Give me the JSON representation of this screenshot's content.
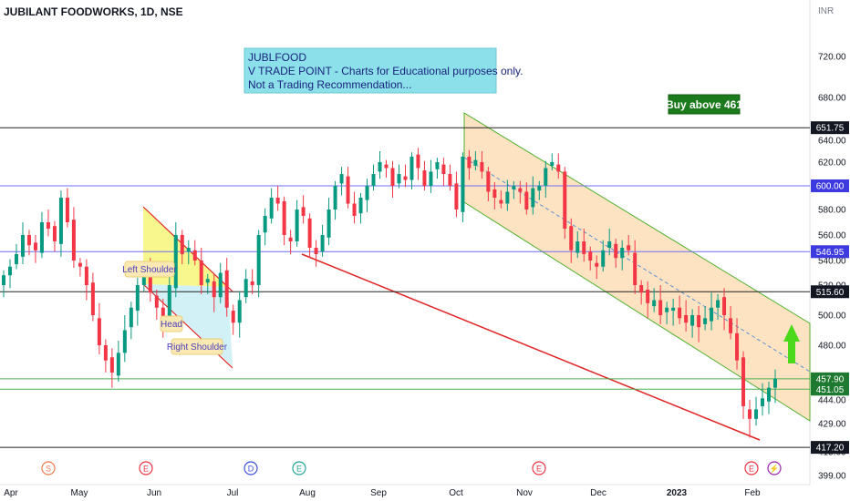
{
  "header": {
    "symbol_line": "JUBILANT FOODWORKS, 1D, NSE",
    "currency": "INR"
  },
  "info_box": {
    "line1": "JUBLFOOD",
    "line2": "V TRADE POINT - Charts for Educational purposes only.",
    "line3": "Not a Trading Recommendation..."
  },
  "callout": {
    "text": "Buy above 461",
    "bg": "#1b7a1b"
  },
  "colors": {
    "up": "#089981",
    "down": "#f23645",
    "channel_fill": "#fde3c2",
    "channel_edge": "#4caf2a",
    "blue_line": "#6f6cf0",
    "black_line": "#222222",
    "green_line": "#4caf50",
    "red_line": "#e02424",
    "pattern_yellow": "#f6f67a",
    "pattern_cyan": "#c9eef5",
    "arrow": "#4cd91c"
  },
  "chart_data": {
    "type": "candlestick",
    "title": "JUBILANT FOODWORKS, 1D, NSE",
    "ylabel": "INR",
    "ylim": [
      395,
      735
    ],
    "yticks": [
      399,
      415,
      429,
      444,
      459,
      480,
      500,
      520,
      540,
      560,
      580,
      600,
      620,
      640,
      680,
      720
    ],
    "ytick_labels": [
      "399.00",
      "415.00",
      "429.00",
      "444.00",
      "459.00",
      "480.00",
      "500.00",
      "520.00",
      "540.00",
      "560.00",
      "580.00",
      "600.00",
      "620.00",
      "640.00",
      "680.00",
      "720.00"
    ],
    "xticks": [
      "Apr",
      "May",
      "Jun",
      "Jul",
      "Aug",
      "Sep",
      "Oct",
      "Nov",
      "Dec",
      "2023",
      "Feb"
    ],
    "horizontal_levels": [
      {
        "value": 651.75,
        "label": "651.75",
        "style": "black"
      },
      {
        "value": 600.0,
        "label": "600.00",
        "style": "blue"
      },
      {
        "value": 546.95,
        "label": "546.95",
        "style": "blue"
      },
      {
        "value": 515.6,
        "label": "515.60",
        "style": "black"
      },
      {
        "value": 457.9,
        "label": "457.90",
        "style": "green"
      },
      {
        "value": 451.05,
        "label": "451.05",
        "style": "green"
      },
      {
        "value": 417.2,
        "label": "417.20",
        "style": "black"
      }
    ],
    "pattern_labels": [
      "Left Shoulder",
      "Head",
      "Right Shoulder"
    ],
    "event_markers": [
      {
        "letter": "S",
        "month": "Apr-May"
      },
      {
        "letter": "E",
        "month": "Jun"
      },
      {
        "letter": "D",
        "month": "Jul"
      },
      {
        "letter": "E",
        "month": "Aug"
      },
      {
        "letter": "E",
        "month": "Nov"
      },
      {
        "letter": "E",
        "month": "Feb"
      },
      {
        "letter": "⚡",
        "month": "Feb"
      }
    ],
    "close_series": [
      528,
      535,
      545,
      560,
      552,
      548,
      570,
      565,
      555,
      590,
      570,
      540,
      535,
      520,
      500,
      480,
      470,
      462,
      475,
      490,
      505,
      520,
      530,
      515,
      505,
      495,
      520,
      560,
      545,
      550,
      540,
      520,
      525,
      512,
      530,
      505,
      495,
      510,
      525,
      520,
      560,
      575,
      590,
      585,
      560,
      555,
      580,
      575,
      550,
      545,
      560,
      580,
      600,
      610,
      585,
      575,
      590,
      600,
      610,
      620,
      615,
      600,
      610,
      605,
      625,
      615,
      600,
      612,
      620,
      610,
      600,
      580,
      625,
      615,
      622,
      612,
      595,
      590,
      585,
      595,
      600,
      595,
      580,
      598,
      600,
      615,
      620,
      612,
      565,
      548,
      555,
      545,
      540,
      535,
      548,
      555,
      542,
      550,
      548,
      520,
      515,
      508,
      510,
      500,
      505,
      505,
      498,
      495,
      500,
      492,
      498,
      505,
      510,
      500,
      488,
      470,
      440,
      432,
      438,
      445,
      452,
      458
    ]
  }
}
